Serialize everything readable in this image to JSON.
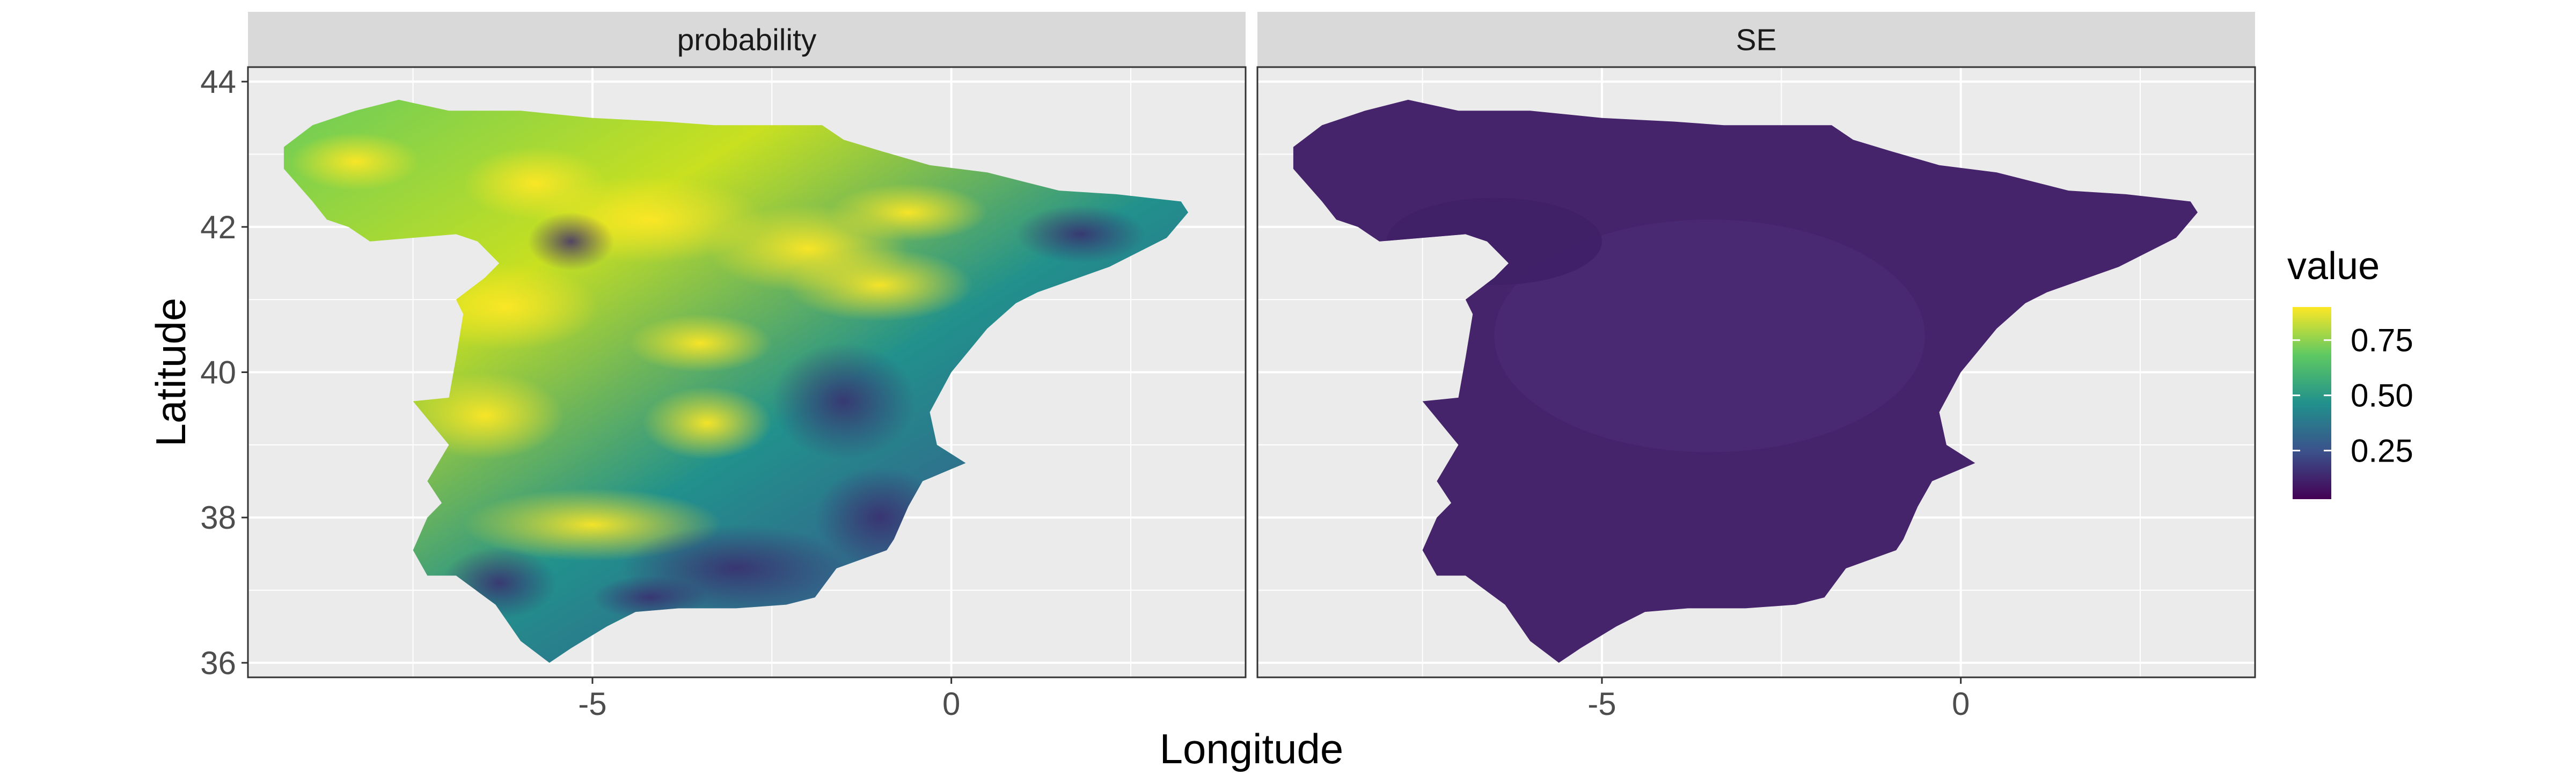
{
  "chart_data": {
    "type": "heatmap",
    "facets": [
      "probability",
      "SE"
    ],
    "xlabel": "Longitude",
    "ylabel": "Latitude",
    "xlim": [
      -9.8,
      4.1
    ],
    "ylim": [
      35.8,
      44.2
    ],
    "x_ticks": [
      -5,
      0
    ],
    "x_tick_labels": [
      "-5",
      "0"
    ],
    "y_ticks": [
      36,
      38,
      40,
      42,
      44
    ],
    "y_tick_labels": [
      "36",
      "38",
      "40",
      "42",
      "44"
    ],
    "legend": {
      "title": "value",
      "breaks": [
        0.75,
        0.5,
        0.25
      ],
      "labels": [
        "0.75",
        "0.50",
        "0.25"
      ],
      "range": [
        0.03,
        0.9
      ],
      "colors": [
        "#440154",
        "#3b528b",
        "#21918c",
        "#5ec962",
        "#fde725"
      ],
      "placement": "right"
    },
    "panel_background": "#ebebeb",
    "grid": true,
    "approx_ranges": {
      "probability": [
        0.05,
        0.9
      ],
      "SE": [
        0.03,
        0.15
      ]
    }
  }
}
